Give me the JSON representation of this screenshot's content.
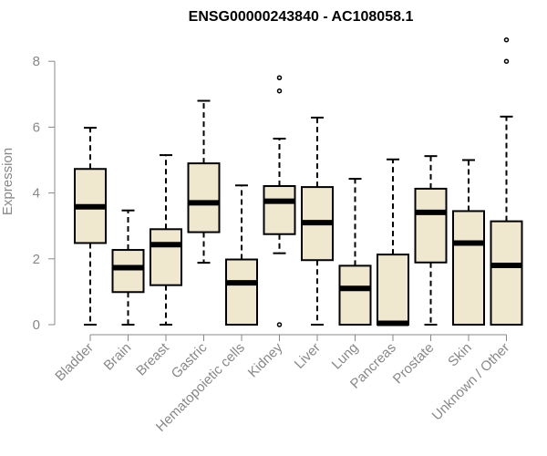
{
  "chart_data": {
    "type": "boxplot",
    "title": "ENSG00000243840 - AC108058.1",
    "xlabel": "",
    "ylabel": "Expression",
    "ylim": [
      0,
      8.7
    ],
    "yticks": [
      0,
      2,
      4,
      6,
      8
    ],
    "grid": false,
    "legend": "none",
    "colors": {
      "box_fill": "#efe8cf",
      "box_stroke": "#000000",
      "axis": "#888888",
      "axis_text": "#888888",
      "title": "#000000"
    },
    "categories": [
      "Bladder",
      "Brain",
      "Breast",
      "Gastric",
      "Hematopoietic cells",
      "Kidney",
      "Liver",
      "Lung",
      "Pancreas",
      "Prostate",
      "Skin",
      "Unknown / Other"
    ],
    "boxes": [
      {
        "category": "Bladder",
        "whisker_low": 0,
        "q1": 2.48,
        "median": 3.58,
        "q3": 4.73,
        "whisker_high": 5.98,
        "outliers": []
      },
      {
        "category": "Brain",
        "whisker_low": 0,
        "q1": 0.99,
        "median": 1.73,
        "q3": 2.27,
        "whisker_high": 3.47,
        "outliers": []
      },
      {
        "category": "Breast",
        "whisker_low": 0,
        "q1": 1.2,
        "median": 2.43,
        "q3": 2.9,
        "whisker_high": 5.15,
        "outliers": []
      },
      {
        "category": "Gastric",
        "whisker_low": 1.88,
        "q1": 2.81,
        "median": 3.7,
        "q3": 4.9,
        "whisker_high": 6.8,
        "outliers": []
      },
      {
        "category": "Hematopoietic cells",
        "whisker_low": 0,
        "q1": 0,
        "median": 1.27,
        "q3": 1.98,
        "whisker_high": 4.23,
        "outliers": []
      },
      {
        "category": "Kidney",
        "whisker_low": 2.17,
        "q1": 2.75,
        "median": 3.75,
        "q3": 4.21,
        "whisker_high": 5.65,
        "outliers": [
          0,
          7.1,
          7.5
        ]
      },
      {
        "category": "Liver",
        "whisker_low": 0,
        "q1": 1.96,
        "median": 3.1,
        "q3": 4.18,
        "whisker_high": 6.29,
        "outliers": []
      },
      {
        "category": "Lung",
        "whisker_low": 0,
        "q1": 0,
        "median": 1.1,
        "q3": 1.79,
        "whisker_high": 4.43,
        "outliers": []
      },
      {
        "category": "Pancreas",
        "whisker_low": 0,
        "q1": 0,
        "median": 0.04,
        "q3": 2.13,
        "whisker_high": 5.02,
        "outliers": []
      },
      {
        "category": "Prostate",
        "whisker_low": 0,
        "q1": 1.89,
        "median": 3.41,
        "q3": 4.13,
        "whisker_high": 5.12,
        "outliers": []
      },
      {
        "category": "Skin",
        "whisker_low": 0,
        "q1": 0,
        "median": 2.48,
        "q3": 3.45,
        "whisker_high": 5.0,
        "outliers": []
      },
      {
        "category": "Unknown / Other",
        "whisker_low": 0,
        "q1": 0,
        "median": 1.8,
        "q3": 3.14,
        "whisker_high": 6.32,
        "outliers": [
          8.0,
          8.65
        ]
      }
    ]
  }
}
